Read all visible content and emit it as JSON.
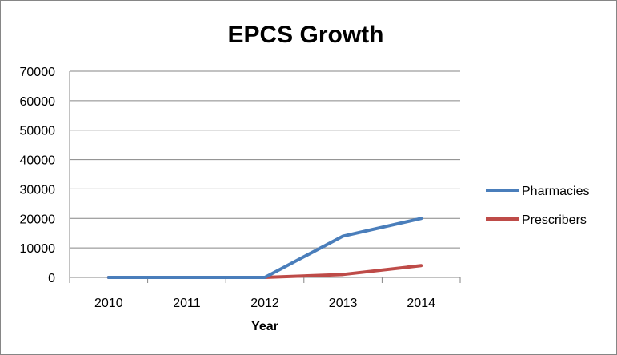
{
  "chart_data": {
    "type": "line",
    "title": "EPCS Growth",
    "xlabel": "Year",
    "ylabel": "",
    "categories": [
      "2010",
      "2011",
      "2012",
      "2013",
      "2014"
    ],
    "series": [
      {
        "name": "Pharmacies",
        "color": "#4a7ebb",
        "values": [
          0,
          0,
          0,
          14000,
          20000
        ]
      },
      {
        "name": "Prescribers",
        "color": "#be4b48",
        "values": [
          0,
          0,
          0,
          1000,
          4000
        ]
      }
    ],
    "ylim": [
      0,
      70000
    ],
    "yticks": [
      "0",
      "10000",
      "20000",
      "30000",
      "40000",
      "50000",
      "60000",
      "70000"
    ],
    "grid": true,
    "legend": "right"
  }
}
